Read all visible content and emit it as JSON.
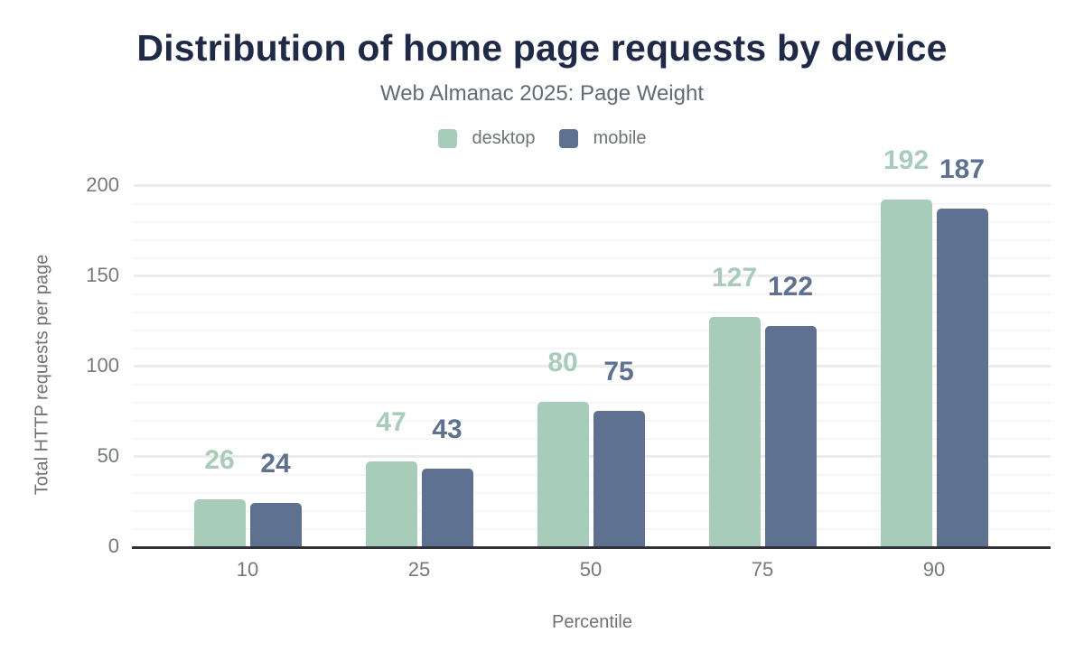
{
  "title": "Distribution of home page requests by device",
  "subtitle": "Web Almanac 2025: Page Weight",
  "legend": {
    "items": [
      {
        "label": "desktop",
        "color": "#a8ccba"
      },
      {
        "label": "mobile",
        "color": "#5e7191"
      }
    ]
  },
  "chart_data": {
    "type": "bar",
    "title": "Distribution of home page requests by device",
    "subtitle": "Web Almanac 2025: Page Weight",
    "categories": [
      "10",
      "25",
      "50",
      "75",
      "90"
    ],
    "series": [
      {
        "name": "desktop",
        "color": "#a8ccba",
        "values": [
          26,
          47,
          80,
          127,
          192
        ]
      },
      {
        "name": "mobile",
        "color": "#5e7191",
        "values": [
          24,
          43,
          75,
          122,
          187
        ]
      }
    ],
    "xlabel": "Percentile",
    "ylabel": "Total HTTP requests per page",
    "ylim": [
      0,
      200
    ],
    "yticks": [
      0,
      50,
      100,
      150,
      200
    ],
    "grid": "horizontal: minor every 10, major every 50",
    "legend_position": "top-center",
    "data_labels": true
  },
  "colors": {
    "title": "#1e2a47",
    "subtitle": "#626a76",
    "axis_text": "#75787c",
    "axis_title": "#6e7276",
    "baseline": "#313237",
    "grid_major": "#ececec",
    "grid_minor": "#f6f6f6",
    "background": "#ffffff"
  }
}
